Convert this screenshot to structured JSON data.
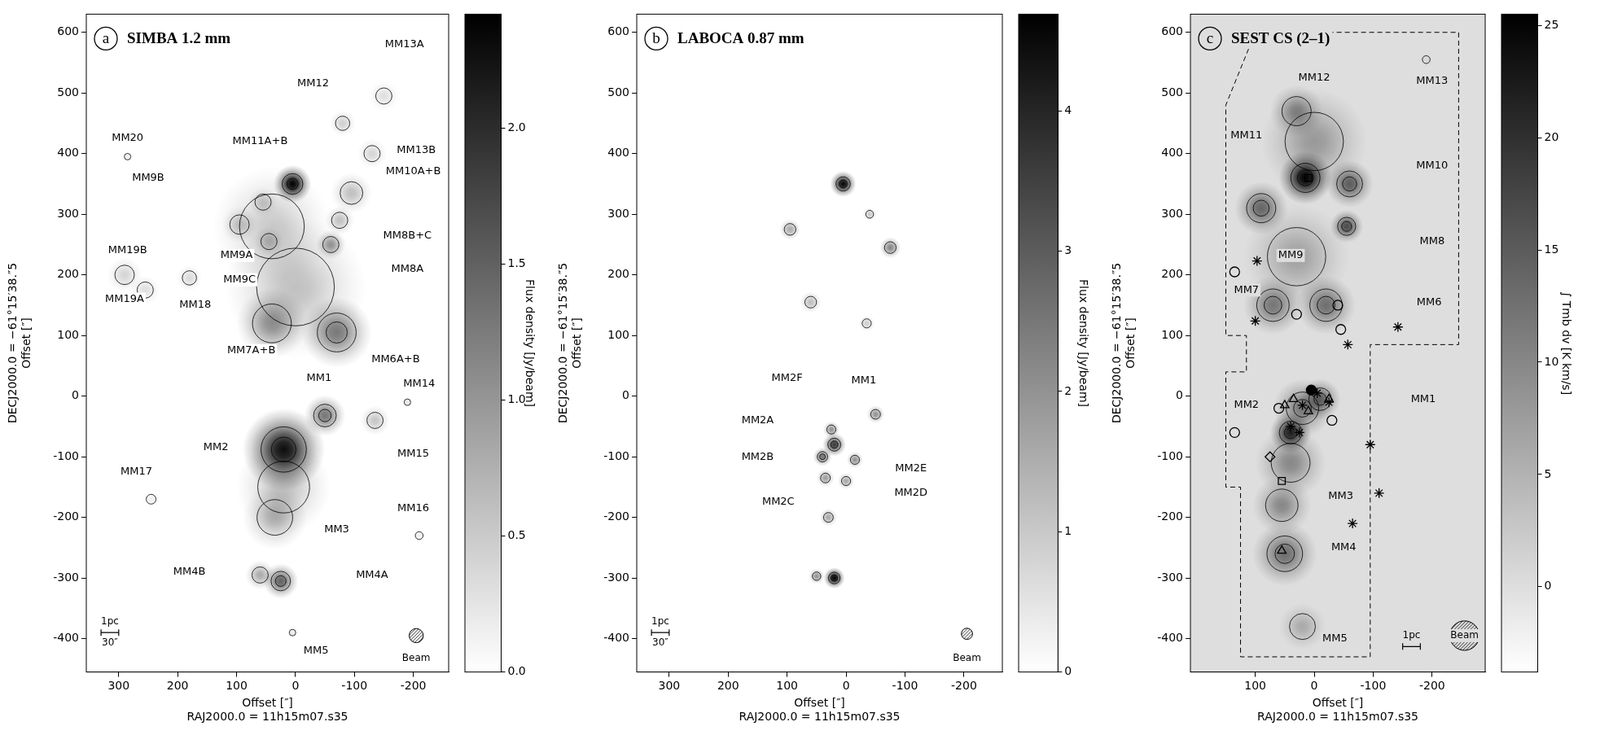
{
  "chart_data": [
    {
      "type": "map",
      "panel": "a",
      "title": "SIMBA 1.2 mm",
      "xlabel": [
        "Offset [″]",
        "RAJ2000.0 = 11h15m07.s35"
      ],
      "ylabel": [
        "DECJ2000.0 = −61°15′38.″5",
        "Offset [″]"
      ],
      "xlim": [
        355,
        -260
      ],
      "xticks": [
        300,
        200,
        100,
        0,
        -100,
        -200
      ],
      "ylim": [
        -455,
        630
      ],
      "yticks": [
        -400,
        -300,
        -200,
        -100,
        0,
        100,
        200,
        300,
        400,
        500,
        600
      ],
      "grid": false,
      "colorbar": {
        "label": "Flux density [Jy/beam]",
        "lim": [
          0,
          2.42
        ],
        "ticks": [
          {
            "value": 0,
            "label": "0.0"
          },
          {
            "value": 0.5,
            "label": "0.5"
          },
          {
            "value": 1,
            "label": "1.0"
          },
          {
            "value": 1.5,
            "label": "1.5"
          },
          {
            "value": 2,
            "label": "2.0"
          }
        ]
      },
      "background_level": 0,
      "sources": [
        {
          "x": 0,
          "y": 180,
          "flux": 0.6,
          "size": 120
        },
        {
          "x": 20,
          "y": -150,
          "flux": 0.6,
          "size": 80
        },
        {
          "x": 40,
          "y": 280,
          "flux": 0.5,
          "size": 100
        },
        {
          "label": "MM2",
          "x": 20,
          "y": -88,
          "flux": 2.3,
          "size": 70,
          "label_x": 135,
          "label_y": -85
        },
        {
          "label": "MM1",
          "x": -50,
          "y": -32,
          "flux": 1.3,
          "size": 35,
          "label_x": -40,
          "label_y": 30
        },
        {
          "label": "MM3",
          "x": 35,
          "y": -200,
          "flux": 0.7,
          "size": 55,
          "label_x": -70,
          "label_y": -220
        },
        {
          "label": "MM4A",
          "x": 25,
          "y": -305,
          "flux": 1.5,
          "size": 30,
          "label_x": -130,
          "label_y": -295
        },
        {
          "label": "MM4B",
          "x": 60,
          "y": -295,
          "flux": 0.8,
          "size": 25,
          "label_x": 180,
          "label_y": -290
        },
        {
          "label": "MM5",
          "x": 5,
          "y": -390,
          "flux": 0.2,
          "size": 10,
          "label_x": -35,
          "label_y": -420
        },
        {
          "label": "MM6A+B",
          "x": -70,
          "y": 105,
          "flux": 1.25,
          "size": 60,
          "label_x": -170,
          "label_y": 60
        },
        {
          "label": "MM7A+B",
          "x": 40,
          "y": 120,
          "flux": 1.0,
          "size": 60,
          "label_x": 75,
          "label_y": 75
        },
        {
          "label": "MM8A",
          "x": -60,
          "y": 250,
          "flux": 1.0,
          "size": 25,
          "label_x": -190,
          "label_y": 210
        },
        {
          "label": "MM8B+C",
          "x": -75,
          "y": 290,
          "flux": 0.6,
          "size": 25,
          "label_x": -190,
          "label_y": 265
        },
        {
          "label": "MM9A",
          "x": 95,
          "y": 283,
          "flux": 0.5,
          "size": 30,
          "label_x": 100,
          "label_y": 232
        },
        {
          "label": "MM9B",
          "x": 55,
          "y": 320,
          "flux": 0.4,
          "size": 25,
          "label_x": 250,
          "label_y": 360
        },
        {
          "label": "MM9C",
          "x": 45,
          "y": 255,
          "flux": 0.45,
          "size": 25,
          "label_x": 95,
          "label_y": 192
        },
        {
          "label": "MM10A+B",
          "x": -95,
          "y": 335,
          "flux": 0.6,
          "size": 35,
          "label_x": -200,
          "label_y": 370
        },
        {
          "label": "MM11A+B",
          "x": 5,
          "y": 350,
          "flux": 2.42,
          "size": 32,
          "label_x": 60,
          "label_y": 420
        },
        {
          "label": "MM12",
          "x": -80,
          "y": 450,
          "flux": 0.45,
          "size": 22,
          "label_x": -30,
          "label_y": 515
        },
        {
          "label": "MM13A",
          "x": -150,
          "y": 495,
          "flux": 0.3,
          "size": 25,
          "label_x": -185,
          "label_y": 580
        },
        {
          "label": "MM13B",
          "x": -130,
          "y": 400,
          "flux": 0.4,
          "size": 25,
          "label_x": -205,
          "label_y": 405
        },
        {
          "label": "MM14",
          "x": -190,
          "y": -10,
          "flux": 0.2,
          "size": 10,
          "label_x": -210,
          "label_y": 20
        },
        {
          "label": "MM15",
          "x": -135,
          "y": -40,
          "flux": 0.55,
          "size": 25,
          "label_x": -200,
          "label_y": -95
        },
        {
          "label": "MM16",
          "x": -210,
          "y": -230,
          "flux": 0.15,
          "size": 12,
          "label_x": -200,
          "label_y": -185
        },
        {
          "label": "MM17",
          "x": 245,
          "y": -170,
          "flux": 0.15,
          "size": 15,
          "label_x": 270,
          "label_y": -125
        },
        {
          "label": "MM18",
          "x": 180,
          "y": 195,
          "flux": 0.35,
          "size": 22,
          "label_x": 170,
          "label_y": 150
        },
        {
          "label": "MM19A",
          "x": 255,
          "y": 175,
          "flux": 0.3,
          "size": 25,
          "label_x": 290,
          "label_y": 160
        },
        {
          "label": "MM19B",
          "x": 290,
          "y": 200,
          "flux": 0.4,
          "size": 30,
          "label_x": 285,
          "label_y": 240
        },
        {
          "label": "MM20",
          "x": 285,
          "y": 395,
          "flux": 0.15,
          "size": 10,
          "label_x": 285,
          "label_y": 425
        }
      ],
      "scalebar": {
        "x": 315,
        "y": -390,
        "length": 30,
        "labels": [
          "1pc",
          "30″"
        ]
      },
      "beam": {
        "x": -205,
        "y": -395,
        "size": 24
      },
      "annotations": [
        {
          "text": "Beam",
          "x": -205,
          "y": -432
        }
      ]
    },
    {
      "type": "map",
      "panel": "b",
      "title": "LABOCA 0.87 mm",
      "xlabel": [
        "Offset [″]",
        "RAJ2000.0 = 11h15m07.s35"
      ],
      "ylabel": [
        "DECJ2000.0 = −61°15′38.″5",
        "Offset [″]"
      ],
      "xlim": [
        355,
        -265
      ],
      "xticks": [
        300,
        200,
        100,
        0,
        -100,
        -200
      ],
      "ylim": [
        -455,
        630
      ],
      "yticks": [
        -400,
        -300,
        -200,
        -100,
        0,
        100,
        200,
        300,
        400,
        500,
        600
      ],
      "grid": false,
      "colorbar": {
        "label": "Flux density [Jy/beam]",
        "lim": [
          0,
          4.69
        ],
        "ticks": [
          0,
          1,
          2,
          3,
          4
        ]
      },
      "background_level": 0,
      "sources": [
        {
          "x": 5,
          "y": 350,
          "flux": 4.6,
          "size": 22
        },
        {
          "x": 95,
          "y": 275,
          "flux": 1.5,
          "size": 18
        },
        {
          "x": -75,
          "y": 245,
          "flux": 2.2,
          "size": 18
        },
        {
          "x": -40,
          "y": 300,
          "flux": 1.0,
          "size": 12
        },
        {
          "x": 60,
          "y": 155,
          "flux": 1.2,
          "size": 18
        },
        {
          "x": -35,
          "y": 120,
          "flux": 0.9,
          "size": 14
        },
        {
          "label": "MM1",
          "x": -50,
          "y": -30,
          "flux": 2.0,
          "size": 15,
          "label_x": -30,
          "label_y": 25
        },
        {
          "label": "MM2A",
          "x": 20,
          "y": -80,
          "flux": 3.6,
          "size": 20,
          "label_x": 150,
          "label_y": -40
        },
        {
          "label": "MM2B",
          "x": 40,
          "y": -100,
          "flux": 2.6,
          "size": 16,
          "label_x": 150,
          "label_y": -100
        },
        {
          "label": "MM2C",
          "x": 35,
          "y": -135,
          "flux": 1.8,
          "size": 15,
          "label_x": 115,
          "label_y": -175
        },
        {
          "label": "MM2D",
          "x": 0,
          "y": -140,
          "flux": 1.6,
          "size": 14,
          "label_x": -110,
          "label_y": -160
        },
        {
          "label": "MM2E",
          "x": -15,
          "y": -105,
          "flux": 2.0,
          "size": 14,
          "label_x": -110,
          "label_y": -120
        },
        {
          "label": "MM2F",
          "x": 25,
          "y": -55,
          "flux": 2.0,
          "size": 14,
          "label_x": 100,
          "label_y": 30
        },
        {
          "x": 30,
          "y": -200,
          "flux": 1.6,
          "size": 15
        },
        {
          "x": 20,
          "y": -300,
          "flux": 4.7,
          "size": 18
        },
        {
          "x": 50,
          "y": -297,
          "flux": 2.0,
          "size": 13
        }
      ],
      "scalebar": {
        "x": 315,
        "y": -390,
        "length": 30,
        "labels": [
          "1pc",
          "30″"
        ]
      },
      "beam": {
        "x": -205,
        "y": -392,
        "size": 19
      },
      "annotations": [
        {
          "text": "Beam",
          "x": -205,
          "y": -432
        }
      ]
    },
    {
      "type": "map",
      "panel": "c",
      "title": "SEST CS (2–1)",
      "xlabel": [
        "Offset [″]",
        "RAJ2000.0 = 11h15m07.s35"
      ],
      "ylabel": [
        "DECJ2000.0 = −61°15′38.″5",
        "Offset [″]"
      ],
      "xlim": [
        210,
        -290
      ],
      "xticks": [
        100,
        0,
        -100,
        -200
      ],
      "ylim": [
        -455,
        630
      ],
      "yticks": [
        -400,
        -300,
        -200,
        -100,
        0,
        100,
        200,
        300,
        400,
        500,
        600
      ],
      "grid": false,
      "colorbar": {
        "label": "∫ Tmb dv [K km/s]",
        "lim": [
          -3.8,
          25.5
        ],
        "ticks": [
          0,
          5,
          10,
          15,
          20,
          25
        ]
      },
      "background_level": 0,
      "sources": [
        {
          "x": 30,
          "y": 230,
          "flux": 7,
          "size": 90
        },
        {
          "x": 0,
          "y": 420,
          "flux": 8,
          "size": 90
        },
        {
          "label": "MM11",
          "x": 15,
          "y": 360,
          "flux": 25.5,
          "size": 45,
          "label_x": 115,
          "label_y": 430
        },
        {
          "label": "MM9",
          "x": 90,
          "y": 310,
          "flux": 14,
          "size": 45,
          "label_x": 40,
          "label_y": 232
        },
        {
          "label": "MM10",
          "x": -60,
          "y": 350,
          "flux": 15,
          "size": 40,
          "label_x": -200,
          "label_y": 380
        },
        {
          "label": "MM12",
          "x": 30,
          "y": 470,
          "flux": 10,
          "size": 45,
          "label_x": 0,
          "label_y": 525
        },
        {
          "label": "MM13",
          "x": -190,
          "y": 555,
          "flux": 1,
          "size": 12,
          "label_x": -200,
          "label_y": 520
        },
        {
          "label": "MM8",
          "x": -55,
          "y": 280,
          "flux": 17,
          "size": 28,
          "label_x": -200,
          "label_y": 255
        },
        {
          "label": "MM7",
          "x": 70,
          "y": 150,
          "flux": 12,
          "size": 50,
          "label_x": 115,
          "label_y": 175
        },
        {
          "label": "MM6",
          "x": -20,
          "y": 150,
          "flux": 13,
          "size": 50,
          "label_x": -195,
          "label_y": 155
        },
        {
          "x": 20,
          "y": -20,
          "flux": 12,
          "size": 50
        },
        {
          "x": 40,
          "y": -110,
          "flux": 10,
          "size": 60
        },
        {
          "label": "MM1",
          "x": -10,
          "y": -5,
          "flux": 14,
          "size": 35,
          "label_x": -185,
          "label_y": -5
        },
        {
          "label": "MM2",
          "x": 40,
          "y": -60,
          "flux": 22,
          "size": 35,
          "label_x": 115,
          "label_y": -15
        },
        {
          "label": "MM3",
          "x": 55,
          "y": -180,
          "flux": 10,
          "size": 50,
          "label_x": -45,
          "label_y": -165
        },
        {
          "label": "MM4",
          "x": 50,
          "y": -260,
          "flux": 13,
          "size": 55,
          "label_x": -50,
          "label_y": -250
        },
        {
          "label": "MM5",
          "x": 20,
          "y": -380,
          "flux": 6,
          "size": 40,
          "label_x": -35,
          "label_y": -400
        }
      ],
      "series": [
        {
          "marker": "star",
          "color": "#000000",
          "x": [
            97,
            100,
            -57,
            -142,
            -25,
            20,
            -5,
            -95,
            -110,
            -65,
            40,
            25
          ],
          "y": [
            223,
            124,
            85,
            114,
            -10,
            -15,
            5,
            -80,
            -160,
            -210,
            -50,
            -60
          ]
        },
        {
          "marker": "circle",
          "color": "#000000",
          "x": [
            135,
            30,
            -40,
            -45,
            135,
            -30,
            60
          ],
          "y": [
            205,
            135,
            150,
            110,
            -60,
            -40,
            -20
          ]
        },
        {
          "marker": "triangle",
          "color": "#000000",
          "x": [
            35,
            10,
            50,
            55,
            -25
          ],
          "y": [
            -5,
            -25,
            -15,
            -255,
            -5
          ]
        },
        {
          "marker": "filled_circle",
          "color": "#000000",
          "x": [
            5
          ],
          "y": [
            10
          ]
        },
        {
          "marker": "square",
          "color": "#000000",
          "x": [
            55,
            10
          ],
          "y": [
            -140,
            360
          ]
        },
        {
          "marker": "diamond",
          "color": "#000000",
          "x": [
            75
          ],
          "y": [
            -100
          ]
        }
      ],
      "coverage": [
        [
          100,
          600
        ],
        [
          -245,
          600
        ],
        [
          -245,
          85
        ],
        [
          -95,
          85
        ],
        [
          -95,
          -430
        ],
        [
          125,
          -430
        ],
        [
          125,
          -150
        ],
        [
          150,
          -150
        ],
        [
          150,
          40
        ],
        [
          115,
          40
        ],
        [
          115,
          100
        ],
        [
          150,
          100
        ],
        [
          150,
          480
        ],
        [
          100,
          600
        ]
      ],
      "scalebar": {
        "x": -165,
        "y": -413,
        "length": 30,
        "labels": [
          "1pc"
        ]
      },
      "beam": {
        "x": -255,
        "y": -395,
        "size": 50
      },
      "annotations": [
        {
          "text": "Beam",
          "x": -255,
          "y": -395
        }
      ]
    }
  ]
}
